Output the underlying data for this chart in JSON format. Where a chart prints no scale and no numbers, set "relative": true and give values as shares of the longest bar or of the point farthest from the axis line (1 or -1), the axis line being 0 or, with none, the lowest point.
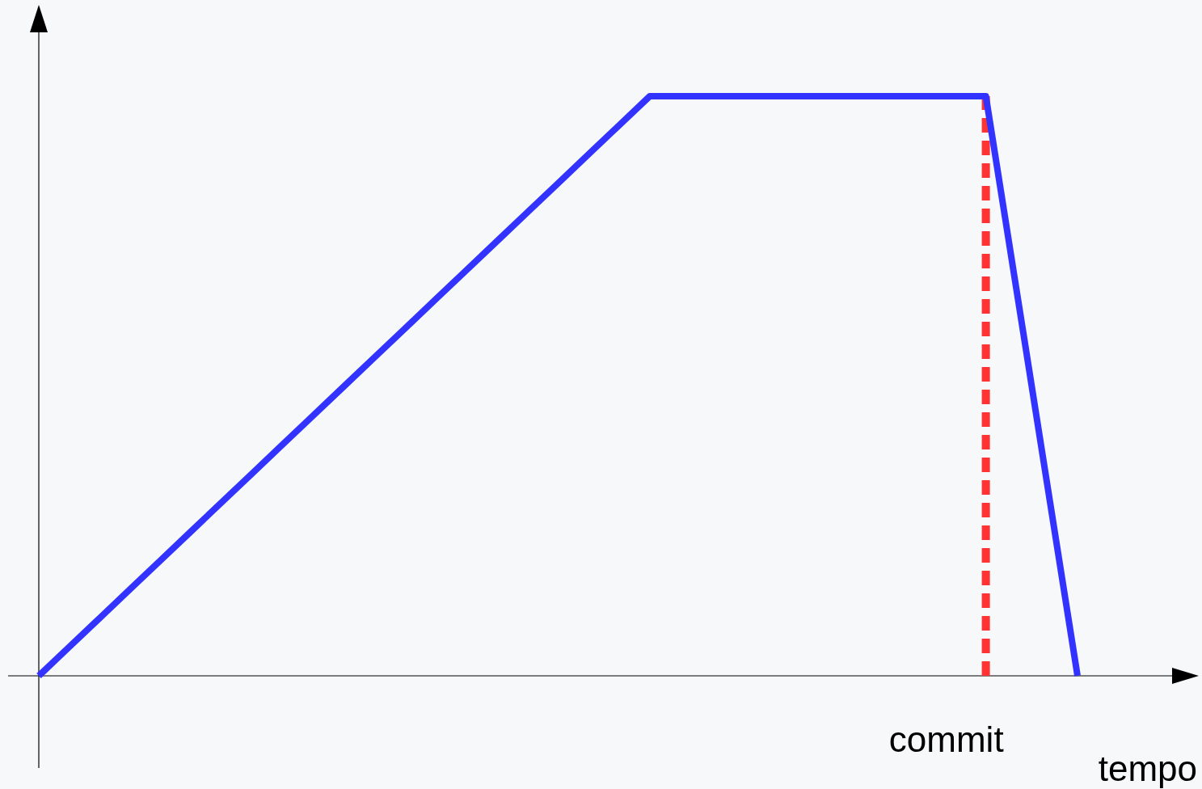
{
  "chart_data": {
    "type": "line",
    "relative": true,
    "xlabel": "tempo",
    "categories": [
      null,
      null,
      null,
      null,
      null,
      null,
      null,
      null,
      null,
      null,
      null,
      null,
      null,
      null,
      null,
      null,
      null,
      null,
      null,
      null,
      null,
      null,
      null,
      null,
      null,
      null,
      null,
      null,
      null,
      null,
      null,
      null,
      null,
      null,
      null
    ],
    "series": [
      {
        "color": "#3333ff",
        "values": [
          0,
          0.05,
          0.1,
          0.15,
          0.2,
          0.25,
          0.3,
          0.35,
          0.4,
          0.45,
          0.5,
          0.55,
          0.6,
          0.65,
          0.7,
          0.75,
          0.8,
          0.85,
          0.9,
          0.95,
          1,
          1,
          1,
          1,
          1,
          1,
          1,
          1,
          1,
          1,
          1,
          1,
          0.667,
          0.333,
          0
        ]
      }
    ],
    "annotations": [
      "commit"
    ]
  }
}
